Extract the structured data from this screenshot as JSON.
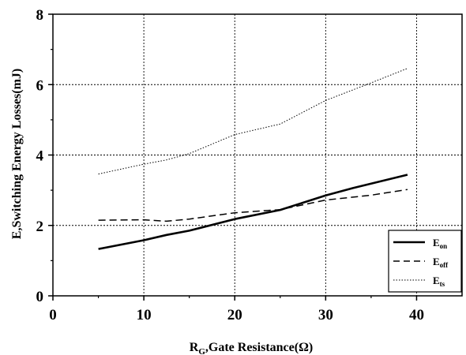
{
  "chart_data": {
    "type": "line",
    "ylabel_main": "E,Switching Energy Losses(mJ)",
    "xlabel_main": "R",
    "xlabel_sub": "G",
    "xlabel_rest": ",Gate Resistance(Ω)",
    "xlim": [
      0,
      45
    ],
    "ylim": [
      0,
      8
    ],
    "xticks": [
      0,
      10,
      20,
      30,
      40
    ],
    "yticks": [
      0,
      2,
      4,
      6,
      8
    ],
    "grid": true,
    "legend_position": "bottom-right",
    "series": [
      {
        "name_main": "E",
        "name_sub": "on",
        "style": "solid",
        "x": [
          5,
          10,
          12.5,
          15,
          20,
          25,
          30,
          33,
          39
        ],
        "y": [
          1.33,
          1.58,
          1.73,
          1.85,
          2.18,
          2.44,
          2.85,
          3.06,
          3.44
        ]
      },
      {
        "name_main": "E",
        "name_sub": "off",
        "style": "dashed",
        "x": [
          5,
          10,
          12.5,
          15,
          20,
          25,
          30,
          35,
          39
        ],
        "y": [
          2.15,
          2.16,
          2.12,
          2.18,
          2.36,
          2.45,
          2.72,
          2.86,
          3.02
        ]
      },
      {
        "name_main": "E",
        "name_sub": "ts",
        "style": "dotted",
        "x": [
          5,
          10,
          12.5,
          15,
          20,
          25,
          30,
          35,
          39
        ],
        "y": [
          3.46,
          3.74,
          3.86,
          4.04,
          4.58,
          4.88,
          5.55,
          6.05,
          6.46
        ]
      }
    ]
  }
}
